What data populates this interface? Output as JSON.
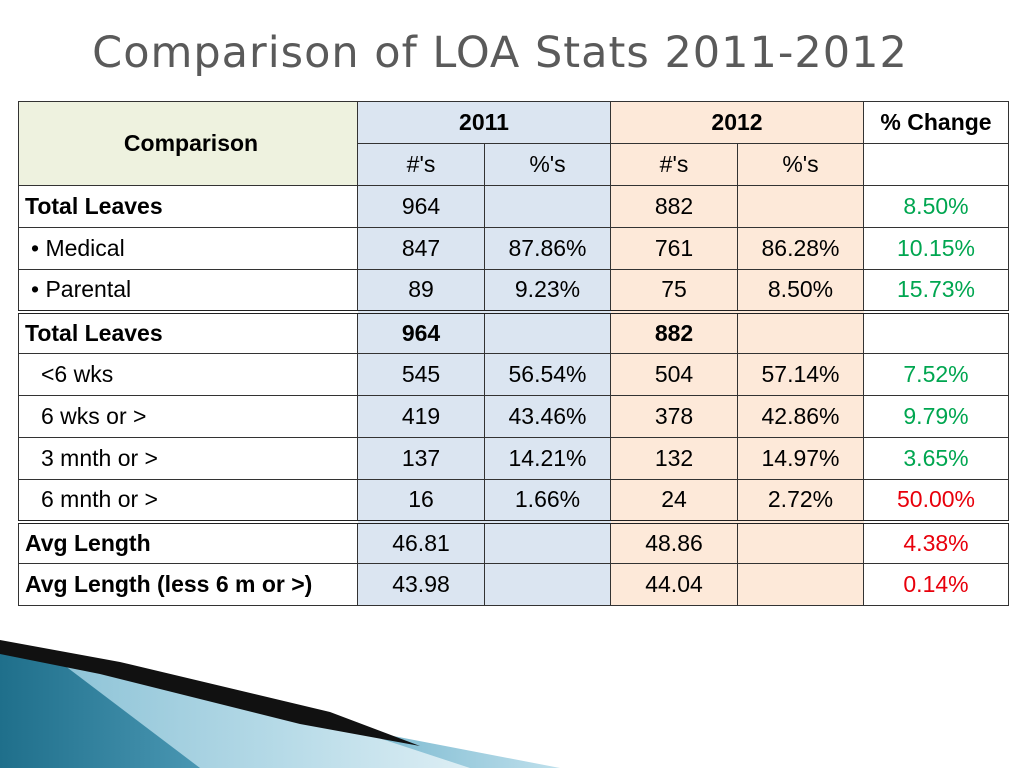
{
  "title": "Comparison of LOA Stats 2011-2012",
  "header": {
    "comparison": "Comparison",
    "year_2011": "2011",
    "year_2012": "2012",
    "pct_change": "% Change",
    "num_2011": "#'s",
    "pct_2011": "%'s",
    "num_2012": "#'s",
    "pct_2012": "%'s"
  },
  "rows": [
    {
      "label": "Total Leaves",
      "n2011": "964",
      "p2011": "",
      "n2012": "882",
      "p2012": "",
      "change": "8.50%"
    },
    {
      "label": "• Medical",
      "n2011": "847",
      "p2011": "87.86%",
      "n2012": "761",
      "p2012": "86.28%",
      "change": "10.15%"
    },
    {
      "label": "• Parental",
      "n2011": "89",
      "p2011": "9.23%",
      "n2012": "75",
      "p2012": "8.50%",
      "change": "15.73%"
    },
    {
      "label": "Total Leaves",
      "n2011": "964",
      "p2011": "",
      "n2012": "882",
      "p2012": "",
      "change": ""
    },
    {
      "label": "<6 wks",
      "n2011": "545",
      "p2011": "56.54%",
      "n2012": "504",
      "p2012": "57.14%",
      "change": "7.52%"
    },
    {
      "label": "6 wks or >",
      "n2011": "419",
      "p2011": "43.46%",
      "n2012": "378",
      "p2012": "42.86%",
      "change": "9.79%"
    },
    {
      "label": "3 mnth or >",
      "n2011": "137",
      "p2011": "14.21%",
      "n2012": "132",
      "p2012": "14.97%",
      "change": "3.65%"
    },
    {
      "label": "6 mnth or >",
      "n2011": "16",
      "p2011": "1.66%",
      "n2012": "24",
      "p2012": "2.72%",
      "change": "50.00%"
    },
    {
      "label": "Avg Length",
      "n2011": "46.81",
      "p2011": "",
      "n2012": "48.86",
      "p2012": "",
      "change": "4.38%"
    },
    {
      "label": "Avg Length (less 6 m or >)",
      "n2011": "43.98",
      "p2011": "",
      "n2012": "44.04",
      "p2012": "",
      "change": "0.14%"
    }
  ],
  "colors": {
    "positive_change": "#00a650",
    "negative_change": "#e8000b",
    "col_2011_bg": "#dbe5f1",
    "col_2012_bg": "#fde9d9",
    "comparison_header_bg": "#eef2df",
    "title_color": "#5a5a5a"
  }
}
